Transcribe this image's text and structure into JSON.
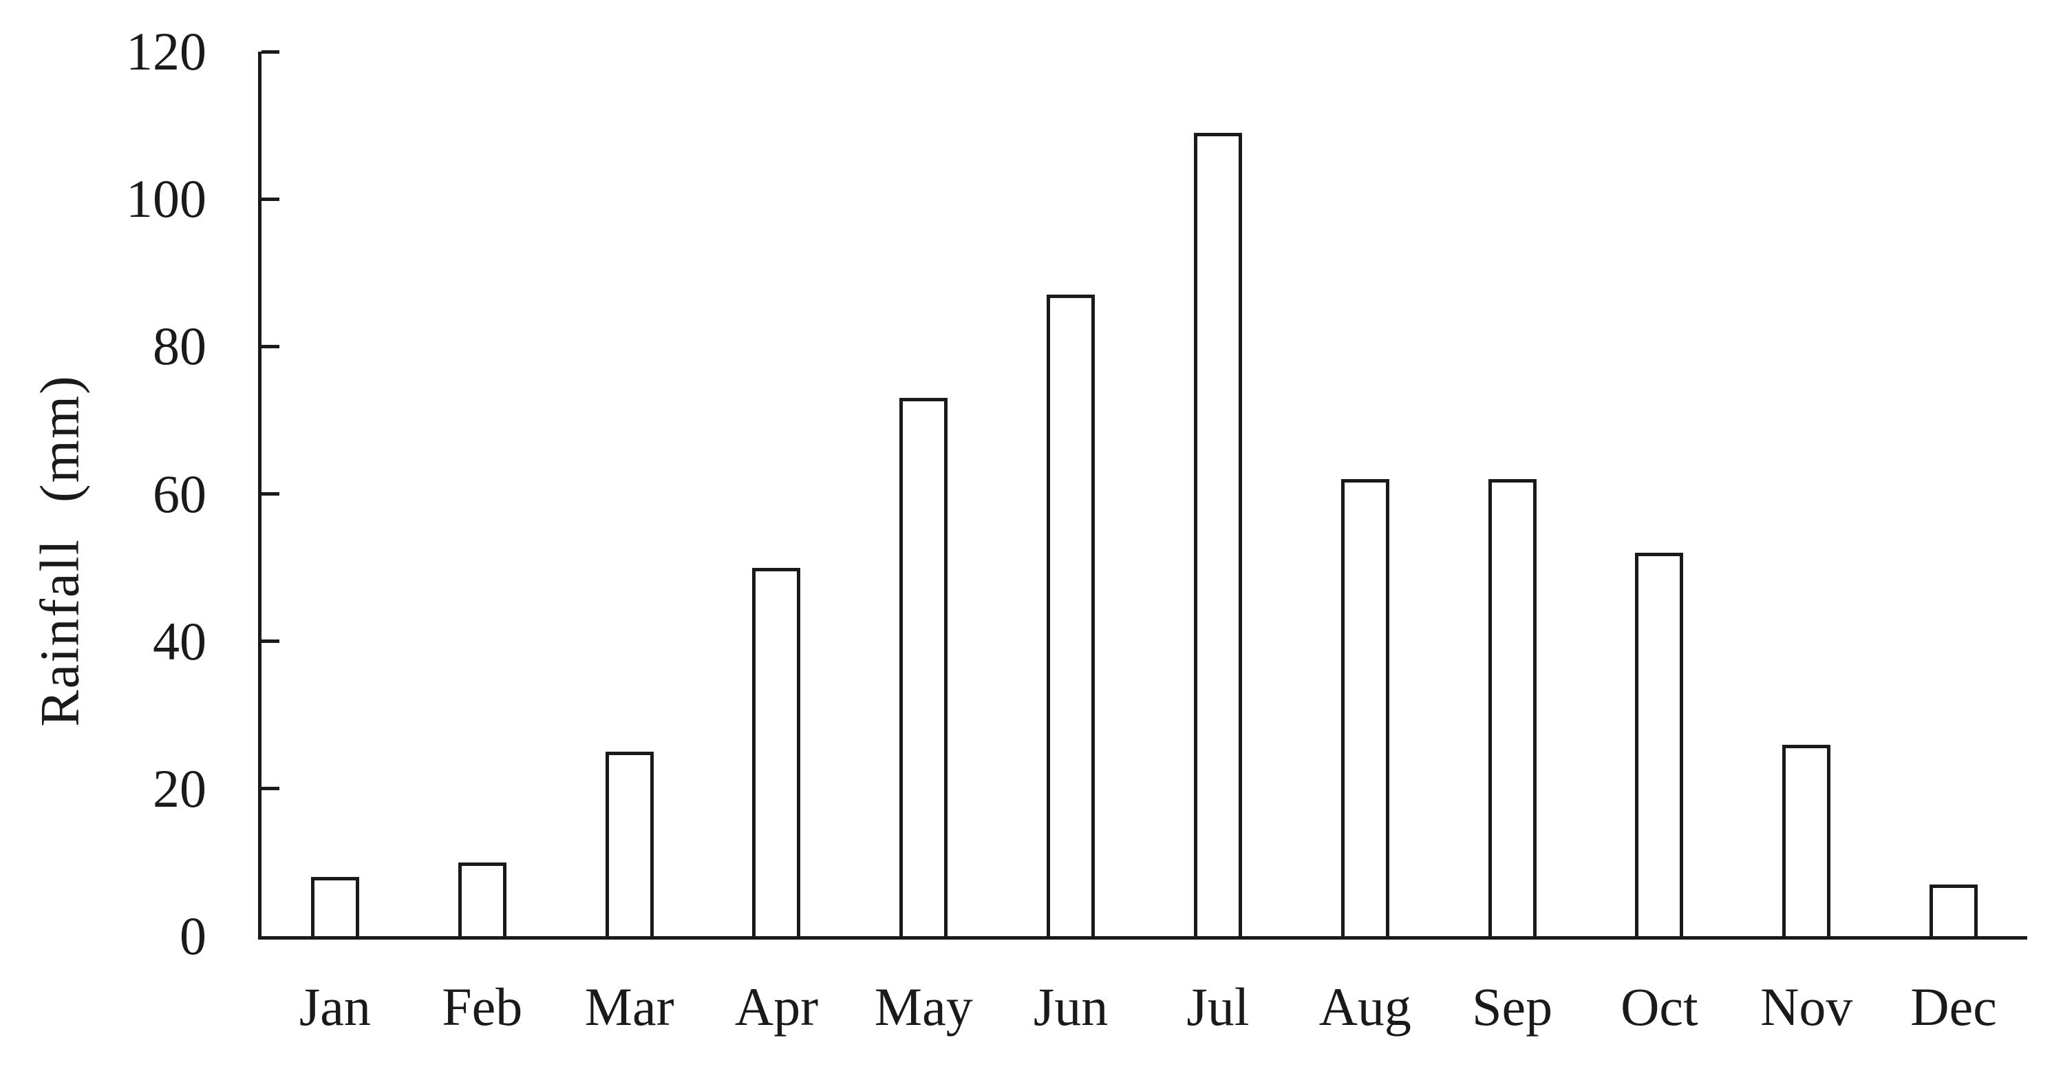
{
  "chart_data": {
    "type": "bar",
    "title": "",
    "categories": [
      "Jan",
      "Feb",
      "Mar",
      "Apr",
      "May",
      "Jun",
      "Jul",
      "Aug",
      "Sep",
      "Oct",
      "Nov",
      "Dec"
    ],
    "values": [
      8,
      10,
      25,
      50,
      73,
      87,
      109,
      62,
      62,
      52,
      26,
      7
    ],
    "xlabel": "",
    "ylabel": "Rainfall (mm)",
    "ylim": [
      0,
      120
    ],
    "yticks": [
      0,
      20,
      40,
      60,
      80,
      100,
      120
    ],
    "grid": false,
    "legend": "none",
    "bar_fill": "#ffffff",
    "bar_border_color": "#1a1a1a",
    "axis_color": "#1a1a1a",
    "text_color": "#1a1a1a",
    "background_color": "#ffffff"
  }
}
